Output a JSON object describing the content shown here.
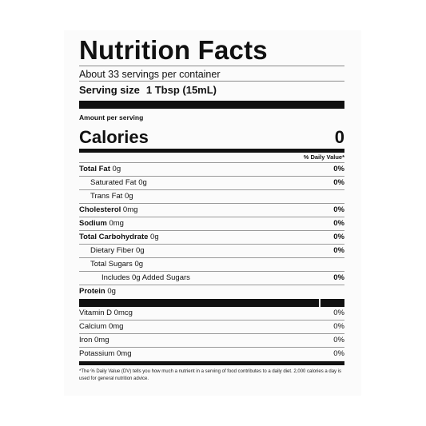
{
  "label": {
    "title": "Nutrition Facts",
    "servings_per_container": "About 33 servings per container",
    "serving_size_label": "Serving size",
    "serving_size_value": "1 Tbsp (15mL)",
    "amount_per_serving": "Amount per serving",
    "calories_label": "Calories",
    "calories_value": "0",
    "dv_header": "% Daily Value*",
    "nutrients": [
      {
        "name": "Total Fat",
        "amount": "0g",
        "pct": "0%"
      },
      {
        "name": "Saturated Fat",
        "amount": "0g",
        "pct": "0%"
      },
      {
        "name": "Trans Fat",
        "amount": "0g",
        "pct": ""
      },
      {
        "name": "Cholesterol",
        "amount": "0mg",
        "pct": "0%"
      },
      {
        "name": "Sodium",
        "amount": "0mg",
        "pct": "0%"
      },
      {
        "name": "Total Carbohydrate",
        "amount": "0g",
        "pct": "0%"
      },
      {
        "name": "Dietary Fiber",
        "amount": "0g",
        "pct": "0%"
      },
      {
        "name": "Total Sugars",
        "amount": "0g",
        "pct": ""
      },
      {
        "name": "Includes 0g Added Sugars",
        "amount": "",
        "pct": "0%"
      },
      {
        "name": "Protein",
        "amount": "0g",
        "pct": ""
      }
    ],
    "vitamins": [
      {
        "name": "Vitamin D",
        "amount": "0mcg",
        "pct": "0%"
      },
      {
        "name": "Calcium",
        "amount": "0mg",
        "pct": "0%"
      },
      {
        "name": "Iron",
        "amount": "0mg",
        "pct": "0%"
      },
      {
        "name": "Potassium",
        "amount": "0mg",
        "pct": "0%"
      }
    ],
    "footnote": "*The % Daily Value (DV) tells you how much a nutrient in a serving of food contributes to a daily diet. 2,000 calories a day is used for general nutrition advice."
  }
}
